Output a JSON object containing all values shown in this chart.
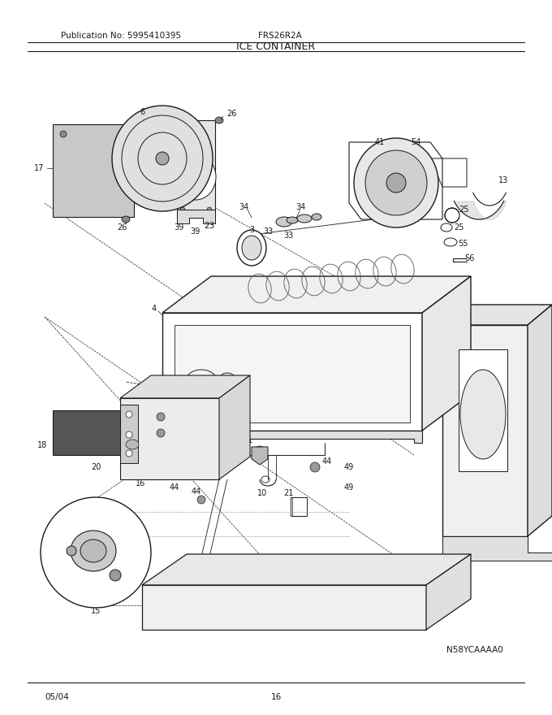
{
  "title": "ICE CONTAINER",
  "pub_no": "Publication No: 5995410395",
  "model": "FRS26R2A",
  "part_no": "N58YCAAAA0",
  "date": "05/04",
  "page": "16",
  "fig_width": 6.8,
  "fig_height": 8.8,
  "dpi": 100,
  "bg_color": "#ffffff",
  "line_color": "#1a1a1a",
  "gray_fill": "#d0d0d0",
  "light_gray": "#e8e8e8",
  "dark_gray": "#888888",
  "title_fontsize": 9,
  "header_fontsize": 7.5,
  "label_fontsize": 7,
  "footer_fontsize": 7.5
}
